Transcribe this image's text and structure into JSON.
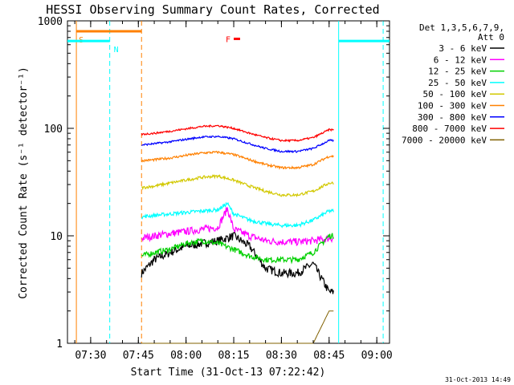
{
  "chart_data": {
    "type": "line",
    "title": "HESSI Observing Summary Count Rates, Corrected",
    "xlabel": "Start Time (31-Oct-13 07:22:42)",
    "ylabel": "Corrected Count Rate (s⁻¹ detector⁻¹)",
    "yscale": "log",
    "ylim": [
      1,
      1000
    ],
    "xlim": [
      "07:22:42",
      "09:04:00"
    ],
    "x_ticks": [
      "07:30",
      "07:45",
      "08:00",
      "08:15",
      "08:30",
      "08:45",
      "09:00"
    ],
    "y_ticks": [
      "1",
      "10",
      "100",
      "1000"
    ],
    "grid": false,
    "legend_position": "top-right",
    "legend_header": [
      "Det 1,3,5,6,7,9,",
      "Att 0"
    ],
    "timestamp": "31-Oct-2013 14:49",
    "data_window": [
      "07:46:00",
      "08:46:30"
    ],
    "series": [
      {
        "name": "3 - 6 keV",
        "color": "#000000",
        "x": [
          "07:46:00",
          "07:50:00",
          "07:55:00",
          "08:00:00",
          "08:05:00",
          "08:10:00",
          "08:15:00",
          "08:20:00",
          "08:25:00",
          "08:30:00",
          "08:35:00",
          "08:40:00",
          "08:45:00"
        ],
        "values": [
          4.5,
          6,
          7,
          8,
          8.5,
          9,
          10,
          8,
          5,
          4.5,
          4.5,
          5.5,
          3
        ]
      },
      {
        "name": "6 - 12 keV",
        "color": "#ff00ff",
        "x": [
          "07:46:00",
          "07:50:00",
          "07:55:00",
          "08:00:00",
          "08:05:00",
          "08:10:00",
          "08:13:00",
          "08:15:00",
          "08:20:00",
          "08:25:00",
          "08:30:00",
          "08:35:00",
          "08:40:00",
          "08:45:00"
        ],
        "values": [
          9.5,
          10,
          10.5,
          11,
          11.5,
          12,
          18,
          11.5,
          10,
          9,
          8.8,
          8.8,
          9,
          9.5
        ]
      },
      {
        "name": "12 - 25 keV",
        "color": "#00d000",
        "x": [
          "07:46:00",
          "07:50:00",
          "07:55:00",
          "08:00:00",
          "08:05:00",
          "08:10:00",
          "08:15:00",
          "08:20:00",
          "08:25:00",
          "08:30:00",
          "08:35:00",
          "08:40:00",
          "08:45:00"
        ],
        "values": [
          6.5,
          7,
          7.5,
          8.5,
          9,
          8.5,
          7.5,
          6.5,
          6,
          6,
          6,
          7,
          10
        ]
      },
      {
        "name": "25 - 50 keV",
        "color": "#00ffff",
        "x": [
          "07:46:00",
          "07:50:00",
          "07:55:00",
          "08:00:00",
          "08:05:00",
          "08:10:00",
          "08:13:00",
          "08:15:00",
          "08:20:00",
          "08:25:00",
          "08:30:00",
          "08:35:00",
          "08:40:00",
          "08:45:00"
        ],
        "values": [
          15,
          15.5,
          16,
          16.5,
          17,
          17.5,
          20,
          16,
          14,
          13,
          12.5,
          12.5,
          14,
          17
        ]
      },
      {
        "name": "50 - 100 keV",
        "color": "#d2c800",
        "x": [
          "07:46:00",
          "07:50:00",
          "07:55:00",
          "08:00:00",
          "08:05:00",
          "08:10:00",
          "08:15:00",
          "08:20:00",
          "08:25:00",
          "08:30:00",
          "08:35:00",
          "08:40:00",
          "08:45:00"
        ],
        "values": [
          28,
          29,
          31,
          33,
          35,
          36,
          33,
          29,
          26,
          24,
          24,
          26,
          31
        ]
      },
      {
        "name": "100 - 300 keV",
        "color": "#ff8000",
        "x": [
          "07:46:00",
          "07:50:00",
          "07:55:00",
          "08:00:00",
          "08:05:00",
          "08:10:00",
          "08:15:00",
          "08:20:00",
          "08:25:00",
          "08:30:00",
          "08:35:00",
          "08:40:00",
          "08:45:00"
        ],
        "values": [
          50,
          51,
          53,
          56,
          59,
          60,
          57,
          51,
          46,
          43,
          43,
          46,
          55
        ]
      },
      {
        "name": "300 - 800 keV",
        "color": "#0000ff",
        "x": [
          "07:46:00",
          "07:50:00",
          "07:55:00",
          "08:00:00",
          "08:05:00",
          "08:10:00",
          "08:15:00",
          "08:20:00",
          "08:25:00",
          "08:30:00",
          "08:35:00",
          "08:40:00",
          "08:45:00"
        ],
        "values": [
          70,
          72,
          75,
          79,
          83,
          84,
          80,
          72,
          65,
          61,
          61,
          65,
          77
        ]
      },
      {
        "name": "800 - 7000 keV",
        "color": "#ff0000",
        "x": [
          "07:46:00",
          "07:50:00",
          "07:55:00",
          "08:00:00",
          "08:05:00",
          "08:10:00",
          "08:15:00",
          "08:20:00",
          "08:25:00",
          "08:30:00",
          "08:35:00",
          "08:40:00",
          "08:45:00"
        ],
        "values": [
          88,
          90,
          94,
          99,
          104,
          106,
          100,
          90,
          82,
          77,
          77,
          82,
          97
        ]
      },
      {
        "name": "7000 - 20000 keV",
        "color": "#806000",
        "x": [
          "07:46:00",
          "08:05:00",
          "08:15:00",
          "08:40:00",
          "08:45:00"
        ],
        "values": [
          1,
          1,
          1,
          1,
          2
        ]
      }
    ],
    "event_markers": [
      {
        "label": "S",
        "color": "#ff8000",
        "level": 800,
        "start": "07:25:30",
        "end": "07:46:00",
        "line_style": "solid"
      },
      {
        "label": "N",
        "color": "#00ffff",
        "level": 650,
        "start": "07:22:42",
        "end": "07:36:00",
        "line_style": "solid"
      },
      {
        "label": "N",
        "color": "#00ffff",
        "level": 650,
        "start": "08:48:00",
        "end": "09:04:00",
        "line_style": "solid"
      },
      {
        "label": "F",
        "color": "#ff0000",
        "level": 680,
        "start": "08:15:00",
        "end": "08:17:00",
        "line_style": "solid"
      }
    ],
    "vertical_lines": [
      {
        "time": "07:25:30",
        "color": "#ff8000",
        "style": "solid"
      },
      {
        "time": "07:36:00",
        "color": "#00ffff",
        "style": "dashed"
      },
      {
        "time": "07:46:00",
        "color": "#ff8000",
        "style": "dashed"
      },
      {
        "time": "08:48:00",
        "color": "#00ffff",
        "style": "solid"
      },
      {
        "time": "09:02:00",
        "color": "#00ffff",
        "style": "dashed"
      }
    ]
  }
}
